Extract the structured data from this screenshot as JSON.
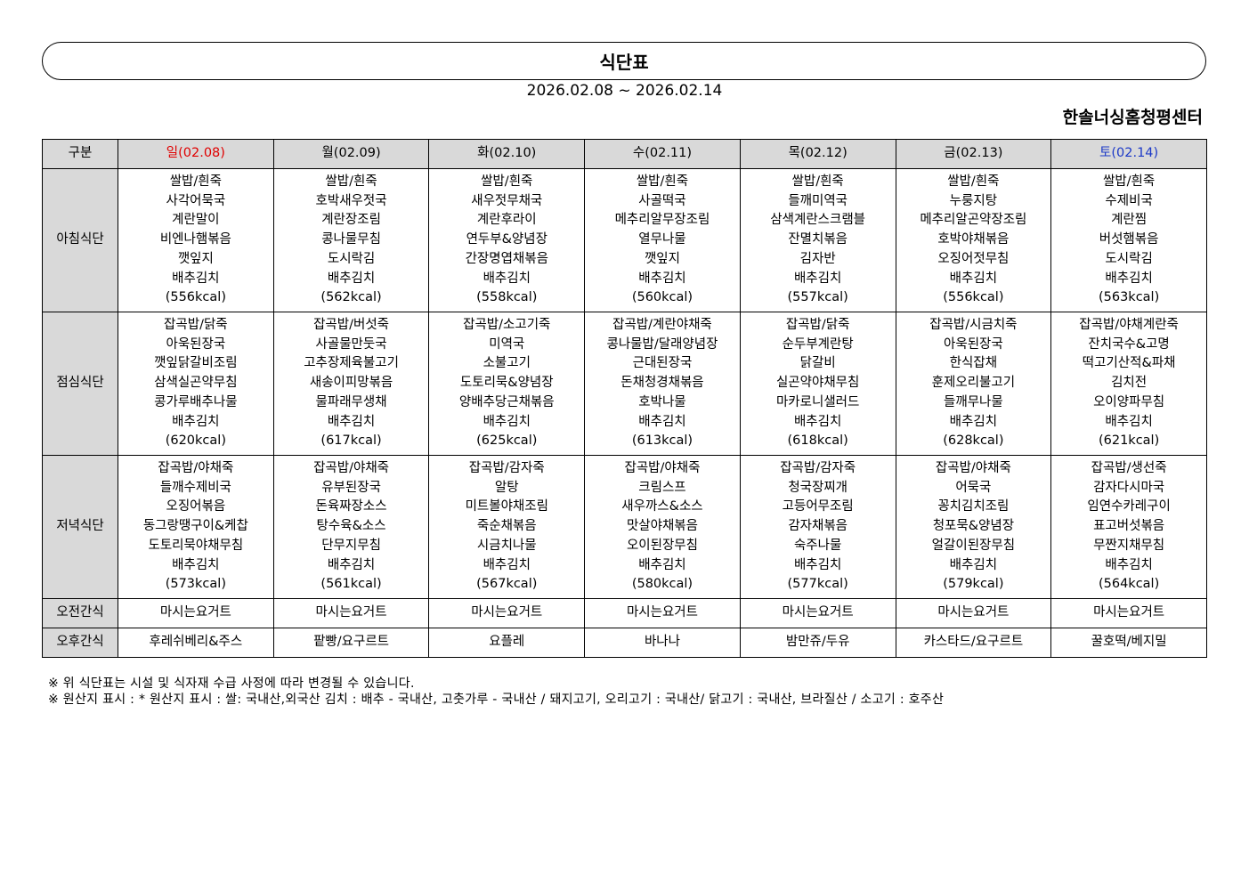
{
  "title": "식단표",
  "date_range": "2026.02.08 ~ 2026.02.14",
  "center_name": "한솔너싱홈청평센터",
  "colors": {
    "sunday": "#e00000",
    "saturday": "#1c39c7",
    "header_bg": "#d9d9d9"
  },
  "table": {
    "corner": "구분",
    "days": [
      "일(02.08)",
      "월(02.09)",
      "화(02.10)",
      "수(02.11)",
      "목(02.12)",
      "금(02.13)",
      "토(02.14)"
    ],
    "rows": [
      {
        "label": "아침식단",
        "cells": [
          [
            "쌀밥/흰죽",
            "사각어묵국",
            "계란말이",
            "비엔나햄볶음",
            "깻잎지",
            "배추김치",
            "(556kcal)"
          ],
          [
            "쌀밥/흰죽",
            "호박새우젓국",
            "계란장조림",
            "콩나물무침",
            "도시락김",
            "배추김치",
            "(562kcal)"
          ],
          [
            "쌀밥/흰죽",
            "새우젓무채국",
            "계란후라이",
            "연두부&양념장",
            "간장명엽채볶음",
            "배추김치",
            "(558kcal)"
          ],
          [
            "쌀밥/흰죽",
            "사골떡국",
            "메추리알무장조림",
            "열무나물",
            "깻잎지",
            "배추김치",
            "(560kcal)"
          ],
          [
            "쌀밥/흰죽",
            "들깨미역국",
            "삼색계란스크램블",
            "잔멸치볶음",
            "김자반",
            "배추김치",
            "(557kcal)"
          ],
          [
            "쌀밥/흰죽",
            "누룽지탕",
            "메추리알곤약장조림",
            "호박야채볶음",
            "오징어젓무침",
            "배추김치",
            "(556kcal)"
          ],
          [
            "쌀밥/흰죽",
            "수제비국",
            "계란찜",
            "버섯햄볶음",
            "도시락김",
            "배추김치",
            "(563kcal)"
          ]
        ]
      },
      {
        "label": "점심식단",
        "cells": [
          [
            "잡곡밥/닭죽",
            "아욱된장국",
            "깻잎닭갈비조림",
            "삼색실곤약무침",
            "콩가루배추나물",
            "배추김치",
            "(620kcal)"
          ],
          [
            "잡곡밥/버섯죽",
            "사골물만둣국",
            "고추장제육불고기",
            "새송이피망볶음",
            "물파래무생채",
            "배추김치",
            "(617kcal)"
          ],
          [
            "잡곡밥/소고기죽",
            "미역국",
            "소불고기",
            "도토리묵&양념장",
            "양배추당근채볶음",
            "배추김치",
            "(625kcal)"
          ],
          [
            "잡곡밥/계란야채죽",
            "콩나물밥/달래양념장",
            "근대된장국",
            "돈채청경채볶음",
            "호박나물",
            "배추김치",
            "(613kcal)"
          ],
          [
            "잡곡밥/닭죽",
            "순두부계란탕",
            "닭갈비",
            "실곤약야채무침",
            "마카로니샐러드",
            "배추김치",
            "(618kcal)"
          ],
          [
            "잡곡밥/시금치죽",
            "아욱된장국",
            "한식잡채",
            "훈제오리불고기",
            "들깨무나물",
            "배추김치",
            "(628kcal)"
          ],
          [
            "잡곡밥/야채계란죽",
            "잔치국수&고명",
            "떡고기산적&파채",
            "김치전",
            "오이양파무침",
            "배추김치",
            "(621kcal)"
          ]
        ]
      },
      {
        "label": "저녁식단",
        "cells": [
          [
            "잡곡밥/야채죽",
            "들깨수제비국",
            "오징어볶음",
            "동그랑땡구이&케찹",
            "도토리묵야채무침",
            "배추김치",
            "(573kcal)"
          ],
          [
            "잡곡밥/야채죽",
            "유부된장국",
            "돈육짜장소스",
            "탕수육&소스",
            "단무지무침",
            "배추김치",
            "(561kcal)"
          ],
          [
            "잡곡밥/감자죽",
            "알탕",
            "미트볼야채조림",
            "죽순채볶음",
            "시금치나물",
            "배추김치",
            "(567kcal)"
          ],
          [
            "잡곡밥/야채죽",
            "크림스프",
            "새우까스&소스",
            "맛살야채볶음",
            "오이된장무침",
            "배추김치",
            "(580kcal)"
          ],
          [
            "잡곡밥/감자죽",
            "청국장찌개",
            "고등어무조림",
            "감자채볶음",
            "숙주나물",
            "배추김치",
            "(577kcal)"
          ],
          [
            "잡곡밥/야채죽",
            "어묵국",
            "꽁치김치조림",
            "청포묵&양념장",
            "얼갈이된장무침",
            "배추김치",
            "(579kcal)"
          ],
          [
            "잡곡밥/생선죽",
            "감자다시마국",
            "임연수카레구이",
            "표고버섯볶음",
            "무짠지채무침",
            "배추김치",
            "(564kcal)"
          ]
        ]
      },
      {
        "label": "오전간식",
        "cells": [
          [
            "마시는요거트"
          ],
          [
            "마시는요거트"
          ],
          [
            "마시는요거트"
          ],
          [
            "마시는요거트"
          ],
          [
            "마시는요거트"
          ],
          [
            "마시는요거트"
          ],
          [
            "마시는요거트"
          ]
        ]
      },
      {
        "label": "오후간식",
        "cells": [
          [
            "후레쉬베리&주스"
          ],
          [
            "팥빵/요구르트"
          ],
          [
            "요플레"
          ],
          [
            "바나나"
          ],
          [
            "밤만쥬/두유"
          ],
          [
            "카스타드/요구르트"
          ],
          [
            "꿀호떡/베지밀"
          ]
        ]
      }
    ]
  },
  "notes": [
    "※ 위 식단표는 시설 및 식자재 수급 사정에 따라 변경될 수 있습니다.",
    "※ 원산지 표시 : * 원산지 표시 : 쌀: 국내산,외국산 김치 : 배추 - 국내산, 고춧가루 - 국내산 / 돼지고기, 오리고기 : 국내산/ 닭고기 : 국내산, 브라질산 / 소고기 : 호주산"
  ]
}
